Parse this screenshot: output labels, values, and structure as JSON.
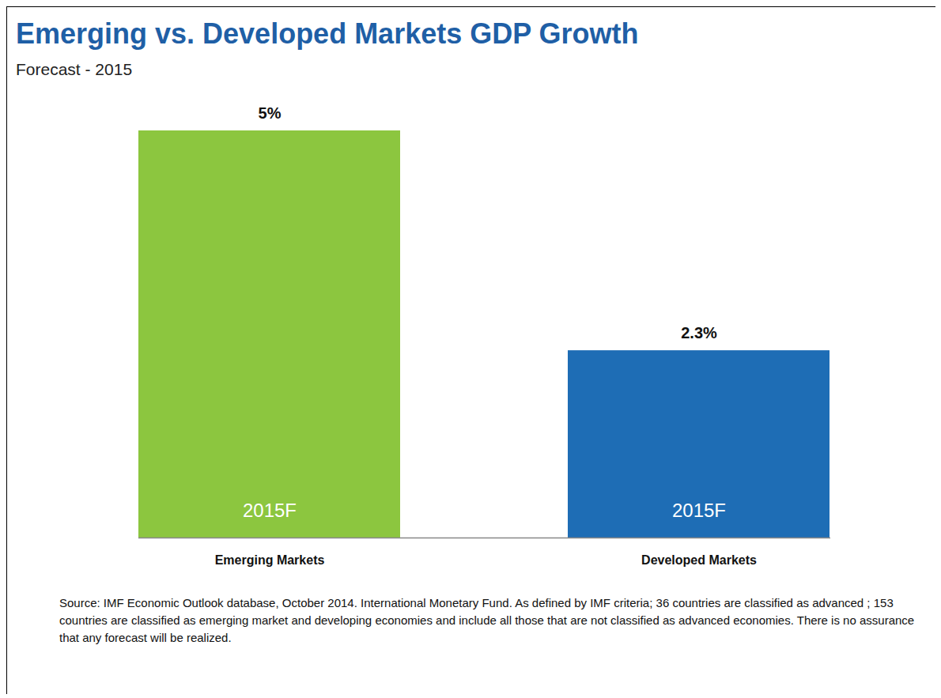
{
  "chart_data": {
    "type": "bar",
    "title": "Emerging vs. Developed Markets GDP Growth",
    "subtitle": "Forecast - 2015",
    "categories": [
      "Emerging Markets",
      "Developed Markets"
    ],
    "values": [
      5,
      2.3
    ],
    "value_labels": [
      "5%",
      "2.3%"
    ],
    "bar_labels": [
      "2015F",
      "2015F"
    ],
    "colors": [
      "#8cc63f",
      "#1e6db5"
    ],
    "ylim": [
      0,
      5
    ],
    "data_labels": true,
    "tick_labels": "x",
    "grid": false,
    "caption": "Source: IMF Economic Outlook database, October 2014. International Monetary Fund. As defined by IMF criteria; 36 countries are classified as advanced ; 153 countries are classified as emerging market and developing economies and include all those that are not classified as advanced economies. There is no assurance that any forecast will be realized."
  }
}
